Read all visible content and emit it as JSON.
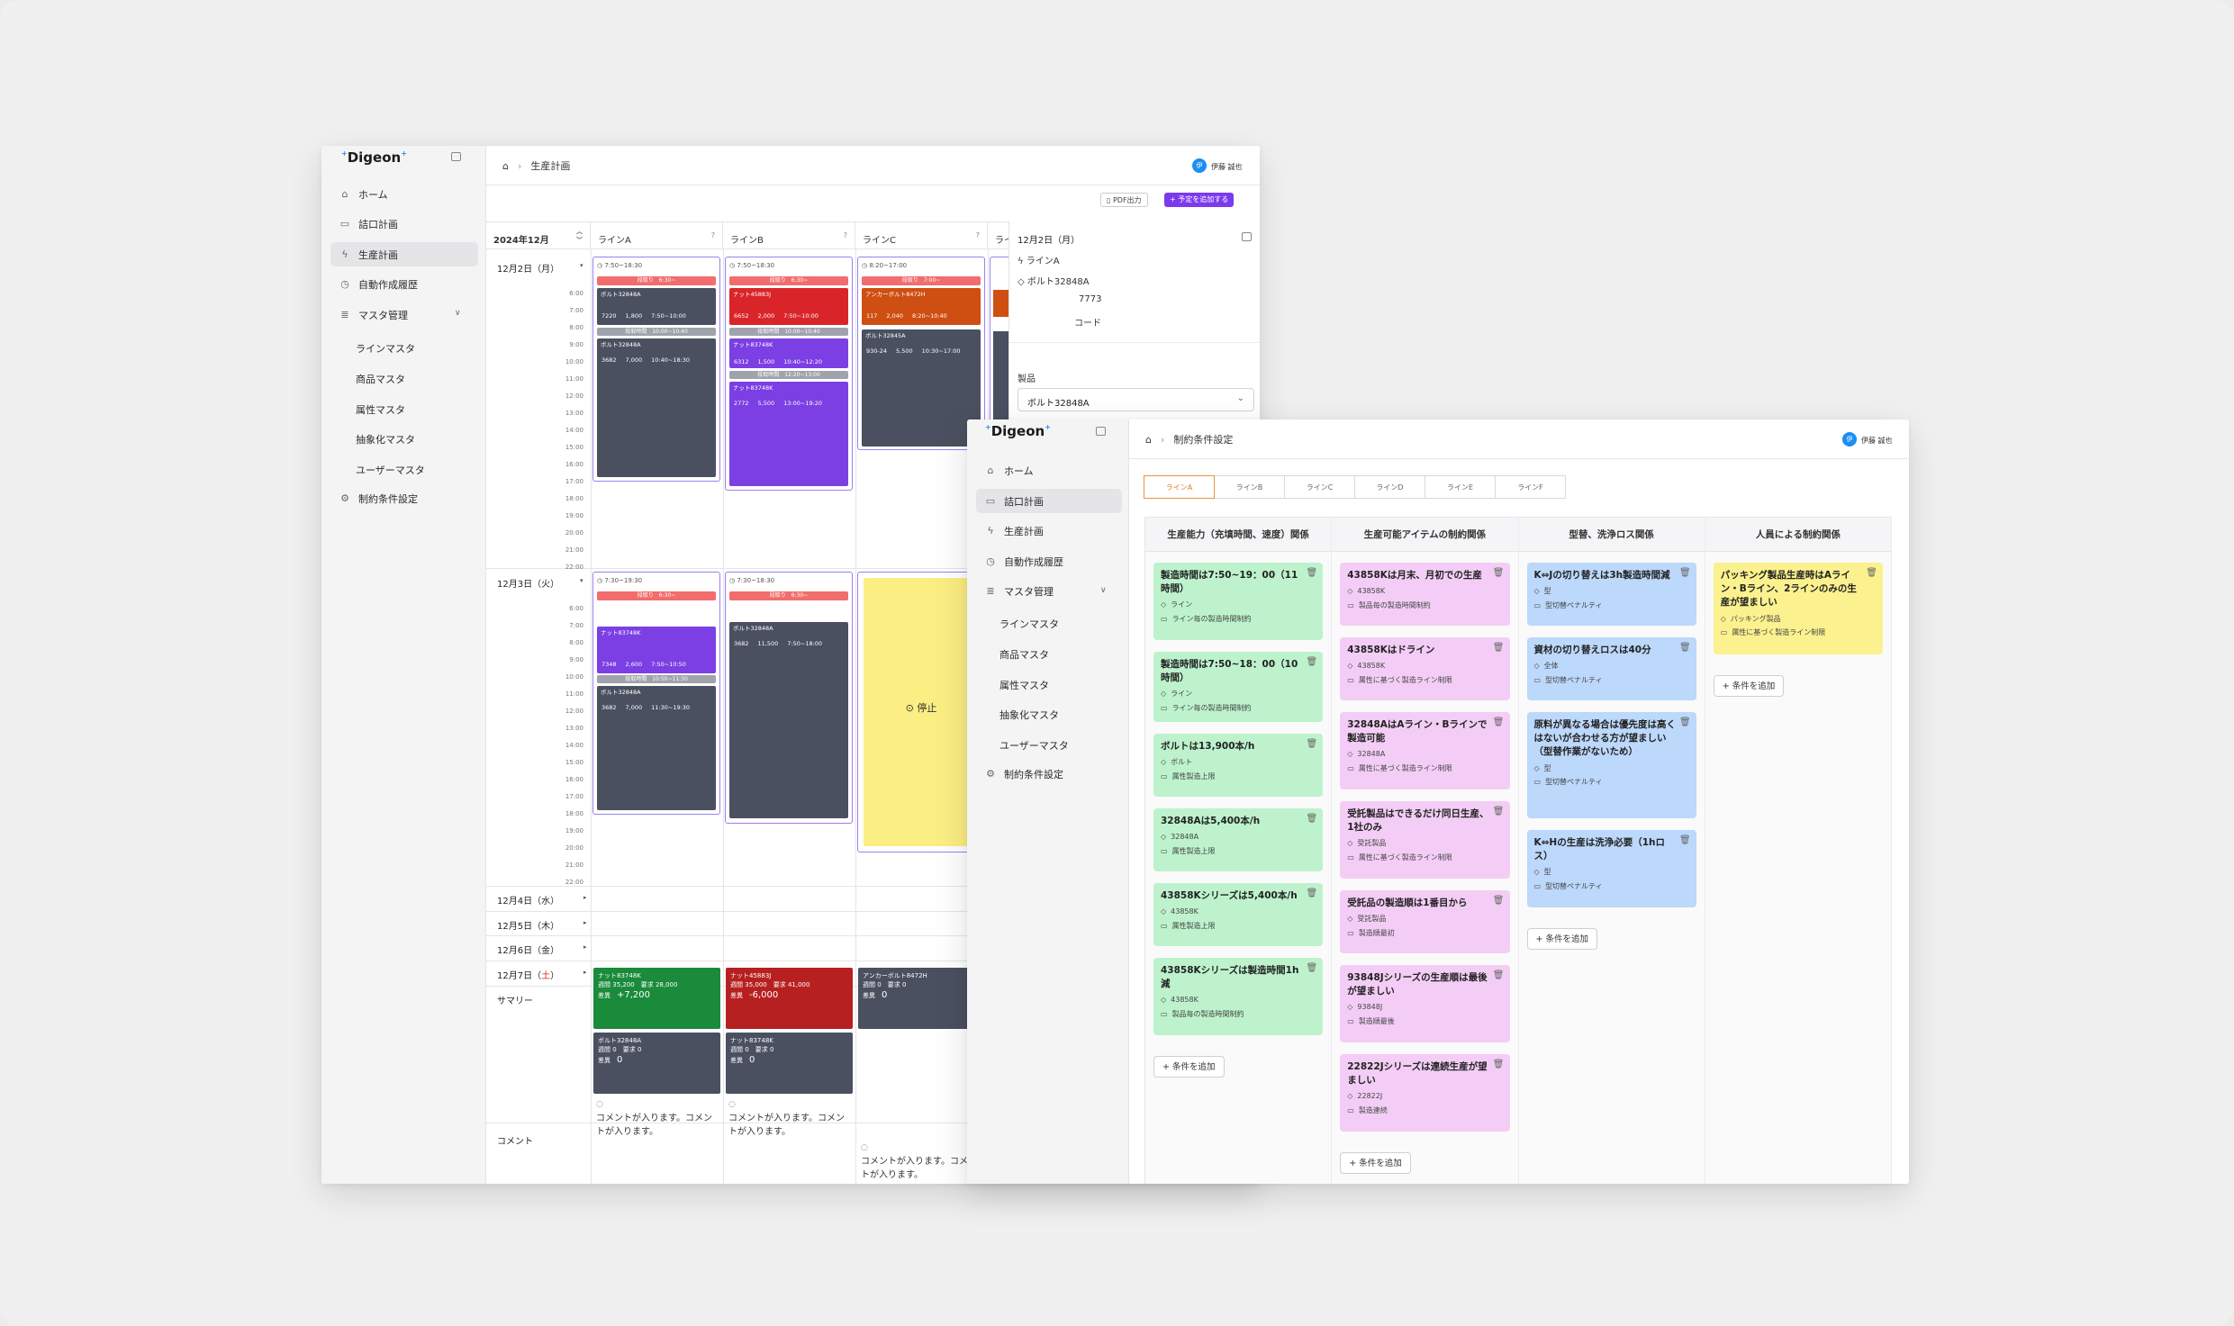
{
  "win1": {
    "logo": "Digeon",
    "nav": [
      {
        "label": "ホーム",
        "icon": "home-icon"
      },
      {
        "label": "詰口計画",
        "icon": "calendar-icon"
      },
      {
        "label": "生産計画",
        "icon": "bolt-icon"
      },
      {
        "label": "自動作成履歴",
        "icon": "history-icon"
      },
      {
        "label": "マスタ管理",
        "icon": "list-icon"
      }
    ],
    "sub": [
      "ラインマスタ",
      "商品マスタ",
      "属性マスタ",
      "抽象化マスタ",
      "ユーザーマスタ"
    ],
    "settings": "制約条件設定",
    "breadcrumb": "生産計画",
    "user": "伊藤 誠也",
    "avatar": "伊",
    "pdf_button": "PDF出力",
    "add_button": "+ 予定を追加する",
    "month": "2024年12月",
    "lines": [
      "ラインA",
      "ラインB",
      "ラインC",
      "ライン"
    ],
    "days": [
      {
        "label": "12月2日（月）"
      },
      {
        "label": "12月3日（火）"
      },
      {
        "label": "12月4日（水）"
      },
      {
        "label": "12月5日（木）"
      },
      {
        "label": "12月6日（金）"
      },
      {
        "label": "12月7日（土）",
        "sat": "土"
      }
    ],
    "hours": [
      "6:00",
      "7:00",
      "8:00",
      "9:00",
      "10:00",
      "11:00",
      "12:00",
      "13:00",
      "14:00",
      "15:00",
      "16:00",
      "17:00",
      "18:00",
      "19:00",
      "20:00",
      "21:00",
      "22:00"
    ],
    "summary_label": "サマリー",
    "comment_label": "コメント",
    "d1": {
      "a": {
        "time": "7:50~18:30",
        "red": "段取り　6:30~",
        "jobs": [
          {
            "name": "ボルト32848A",
            "stats": [
              "7220",
              "1,800",
              "7:50~10:00"
            ]
          },
          {
            "name": "ボルト32848A",
            "stats": [
              "3682",
              "7,000",
              "10:40~18:30"
            ]
          }
        ],
        "break": "段取時間　10:00~10:40"
      },
      "b": {
        "time": "7:50~18:30",
        "red": "段取り　6:30~",
        "jobs": [
          {
            "name": "ナット45883J",
            "stats": [
              "6652",
              "2,000",
              "7:50~10:00"
            ]
          },
          {
            "name": "ナット83748K",
            "stats": [
              "6312",
              "1,500",
              "10:40~12:20"
            ]
          },
          {
            "name": "ナット83748K",
            "stats": [
              "2772",
              "5,500",
              "13:00~19:20"
            ]
          }
        ],
        "break1": "段取時間　10:00~10:40",
        "break2": "段取時間　12:20~13:00"
      },
      "c": {
        "time": "8:20~17:00",
        "red": "段取り　7:00~",
        "jobs": [
          {
            "name": "アンカーボルト8472H",
            "stats": [
              "117",
              "2,040",
              "8:20~10:40"
            ]
          },
          {
            "name": "ボルト32845A",
            "stats": [
              "930-24",
              "5,500",
              "10:30~17:00"
            ]
          }
        ]
      }
    },
    "d2": {
      "a": {
        "time": "7:30~19:30",
        "red": "段取り　6:30~",
        "jobs": [
          {
            "name": "ナット83748K",
            "stats": [
              "7348",
              "2,600",
              "7:50~10:50"
            ]
          },
          {
            "name": "ボルト32848A",
            "stats": [
              "3682",
              "7,000",
              "11:30~19:30"
            ]
          }
        ],
        "break": "段取時間　10:50~11:30"
      },
      "b": {
        "time": "7:30~18:30",
        "red": "段取り　6:30~",
        "jobs": [
          {
            "name": "ボルト32848A",
            "stats": [
              "3682",
              "11,500",
              "7:50~18:00"
            ]
          }
        ]
      },
      "c": {
        "stop": "停止"
      }
    },
    "summary": {
      "a": [
        {
          "name": "ナット83748K",
          "supply": "35,200",
          "demand": "28,000",
          "diff": "+7,200"
        },
        {
          "name": "ボルト32848A",
          "supply": "0",
          "demand": "0",
          "diff": "0"
        }
      ],
      "b": [
        {
          "name": "ナット45883J",
          "supply": "35,000",
          "demand": "41,000",
          "diff": "-6,000"
        },
        {
          "name": "ナット83748K",
          "supply": "0",
          "demand": "0",
          "diff": "0"
        }
      ],
      "c": [
        {
          "name": "アンカーボルト8472H",
          "supply": "0",
          "demand": "0",
          "diff": "0"
        }
      ],
      "labels": {
        "supply": "週間",
        "demand": "要求",
        "diff": "差異"
      }
    },
    "comments": [
      "コメントが入ります。コメントが入ります。",
      "コメントが入ります。コメントが入ります。",
      "コメントが入ります。コメントが入ります。"
    ],
    "detail": {
      "date": "12月2日（月）",
      "line": "ラインA",
      "product": "ボルト32848A",
      "code_value": "7773",
      "code_label": "コード",
      "field_label": "製品",
      "select_value": "ボルト32848A"
    }
  },
  "win2": {
    "logo": "Digeon",
    "nav": [
      {
        "label": "ホーム"
      },
      {
        "label": "詰口計画"
      },
      {
        "label": "生産計画"
      },
      {
        "label": "自動作成履歴"
      },
      {
        "label": "マスタ管理"
      }
    ],
    "sub": [
      "ラインマスタ",
      "商品マスタ",
      "属性マスタ",
      "抽象化マスタ",
      "ユーザーマスタ"
    ],
    "settings": "制約条件設定",
    "breadcrumb": "制約条件設定",
    "user": "伊藤 誠也",
    "avatar": "伊",
    "tabs": [
      "ラインA",
      "ラインB",
      "ラインC",
      "ラインD",
      "ラインE",
      "ラインF"
    ],
    "columns": [
      {
        "title": "生産能力（充填時間、速度）関係",
        "color": "#bdf2cd",
        "cards": [
          {
            "title": "製造時間は7:50~19：00（11時間）",
            "tag": "ライン",
            "rule": "ライン毎の製造時間制約"
          },
          {
            "title": "製造時間は7:50~18：00（10時間）",
            "tag": "ライン",
            "rule": "ライン毎の製造時間制約"
          },
          {
            "title": "ボルトは13,900本/h",
            "tag": "ボルト",
            "rule": "属性製造上限"
          },
          {
            "title": "32848Aは5,400本/h",
            "tag": "32848A",
            "rule": "属性製造上限"
          },
          {
            "title": "43858Kシリーズは5,400本/h",
            "tag": "43858K",
            "rule": "属性製造上限"
          },
          {
            "title": "43858Kシリーズは製造時間1h減",
            "tag": "43858K",
            "rule": "製品毎の製造時間制約"
          }
        ],
        "add": "条件を追加"
      },
      {
        "title": "生産可能アイテムの制約関係",
        "color": "#f3cdf5",
        "cards": [
          {
            "title": "43858Kは月末、月初での生産",
            "tag": "43858K",
            "rule": "製品毎の製造時間制約"
          },
          {
            "title": "43858Kはドライン",
            "tag": "43858K",
            "rule": "属性に基づく製造ライン制限"
          },
          {
            "title": "32848AはAライン・Bラインで製造可能",
            "tag": "32848A",
            "rule": "属性に基づく製造ライン制限"
          },
          {
            "title": "受託製品はできるだけ同日生産、1社のみ",
            "tag": "受託製品",
            "rule": "属性に基づく製造ライン制限"
          },
          {
            "title": "受託品の製造順は1番目から",
            "tag": "受託製品",
            "rule": "製造順最初"
          },
          {
            "title": "93848Jシリーズの生産順は最後が望ましい",
            "tag": "93848J",
            "rule": "製造順最後"
          },
          {
            "title": "22822Jシリーズは連続生産が望ましい",
            "tag": "22822J",
            "rule": "製造連続"
          }
        ],
        "add": "条件を追加"
      },
      {
        "title": "型替、洗浄ロス関係",
        "color": "#bcd8fb",
        "cards": [
          {
            "title": "K⇔Jの切り替えは3h製造時間減",
            "tag": "型",
            "rule": "型切替ペナルティ"
          },
          {
            "title": "資材の切り替えロスは40分",
            "tag": "全体",
            "rule": "型切替ペナルティ"
          },
          {
            "title": "原料が異なる場合は優先度は高くはないが合わせる方が望ましい（型替作業がないため）",
            "tag": "型",
            "rule": "型切替ペナルティ"
          },
          {
            "title": "K⇔Hの生産は洗浄必要（1hロス）",
            "tag": "型",
            "rule": "型切替ペナルティ"
          }
        ],
        "add": "条件を追加"
      },
      {
        "title": "人員による制約関係",
        "color": "#fbf18e",
        "cards": [
          {
            "title": "パッキング製品生産時はAライン・Bライン、2ラインのみの生産が望ましい",
            "tag": "パッキング製品",
            "rule": "属性に基づく製造ライン制限"
          }
        ],
        "add": "条件を追加"
      }
    ]
  },
  "colors": {
    "accent": "#7c3aed",
    "orange": "#e07c22",
    "blue": "#1b8ef2",
    "red": "#f26d6d",
    "slate": "#4a5060",
    "purple": "#7b3fe4",
    "crimson": "#d9252a",
    "rust": "#cf4e12",
    "green": "#1a8a3b",
    "darkred": "#b72020",
    "yellow": "#fbee83"
  }
}
